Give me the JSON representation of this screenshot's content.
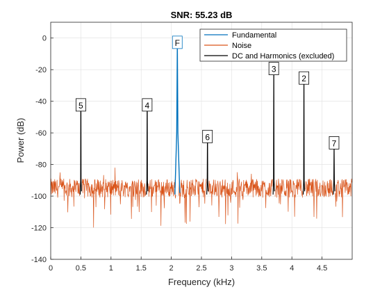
{
  "chart_data": {
    "type": "line",
    "title": "SNR:  55.23 dB",
    "xlabel": "Frequency (kHz)",
    "ylabel": "Power (dB)",
    "xlim": [
      0,
      5
    ],
    "ylim": [
      -140,
      10
    ],
    "xticks": [
      0,
      0.5,
      1,
      1.5,
      2,
      2.5,
      3,
      3.5,
      4,
      4.5
    ],
    "xtick_labels": [
      "0",
      "0.5",
      "1",
      "1.5",
      "2",
      "2.5",
      "3",
      "3.5",
      "4",
      "4.5"
    ],
    "yticks": [
      0,
      -20,
      -40,
      -60,
      -80,
      -100,
      -120,
      -140
    ],
    "ytick_labels": [
      "0",
      "-20",
      "-40",
      "-60",
      "-80",
      "-100",
      "-120",
      "-140"
    ],
    "grid": true,
    "legend_position": "top-right",
    "series": [
      {
        "name": "Fundamental",
        "color": "#0072BD",
        "x": [
          2.06,
          2.09,
          2.1,
          2.11,
          2.14
        ],
        "y": [
          -99,
          -60,
          -2.7,
          -60,
          -98
        ]
      },
      {
        "name": "Noise",
        "color": "#D95319",
        "noise_floor_db": -95,
        "noise_spread_db": 6,
        "noise_min_db": -131,
        "noise_max_db": -82
      },
      {
        "name": "DC and Harmonics (excluded)",
        "color": "#000000",
        "peaks": [
          {
            "label": "5",
            "x": 0.5,
            "y": -48
          },
          {
            "label": "4",
            "x": 1.6,
            "y": -48
          },
          {
            "label": "6",
            "x": 2.6,
            "y": -68
          },
          {
            "label": "3",
            "x": 3.7,
            "y": -25
          },
          {
            "label": "2",
            "x": 4.2,
            "y": -31
          },
          {
            "label": "7",
            "x": 4.7,
            "y": -72
          }
        ]
      }
    ],
    "fundamental_label": "F"
  }
}
